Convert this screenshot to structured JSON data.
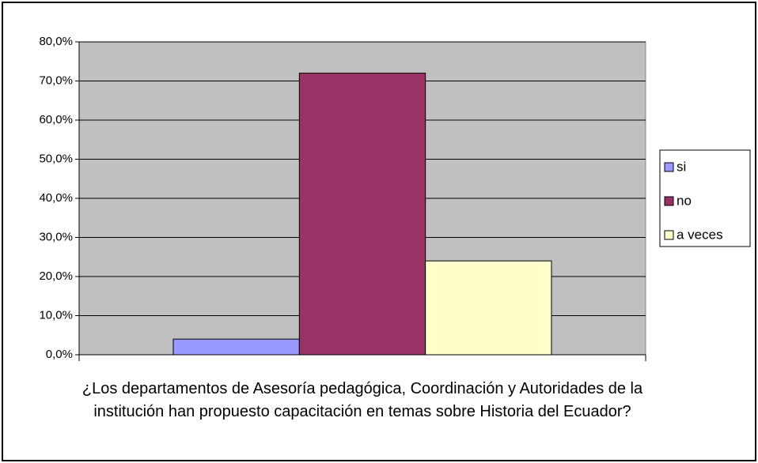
{
  "chart_data": {
    "type": "bar",
    "categories": [
      "¿Los departamentos de Asesoría pedagógica, Coordinación y Autoridades de la institución han propuesto capacitación en temas sobre Historia del Ecuador?"
    ],
    "series": [
      {
        "name": "si",
        "color": "#9999ff",
        "values": [
          4
        ]
      },
      {
        "name": "no",
        "color": "#993366",
        "values": [
          72
        ]
      },
      {
        "name": "a veces",
        "color": "#ffffcc",
        "values": [
          24
        ]
      }
    ],
    "ylim": [
      0,
      80
    ],
    "yticks": [
      {
        "value": 0,
        "label": "0,0%"
      },
      {
        "value": 10,
        "label": "10,0%"
      },
      {
        "value": 20,
        "label": "20,0%"
      },
      {
        "value": 30,
        "label": "30,0%"
      },
      {
        "value": 40,
        "label": "40,0%"
      },
      {
        "value": 50,
        "label": "50,0%"
      },
      {
        "value": 60,
        "label": "60,0%"
      },
      {
        "value": 70,
        "label": "70,0%"
      },
      {
        "value": 80,
        "label": "80,0%"
      }
    ],
    "grid": true,
    "legend": "right",
    "plot_background": "#c0c0c0"
  }
}
